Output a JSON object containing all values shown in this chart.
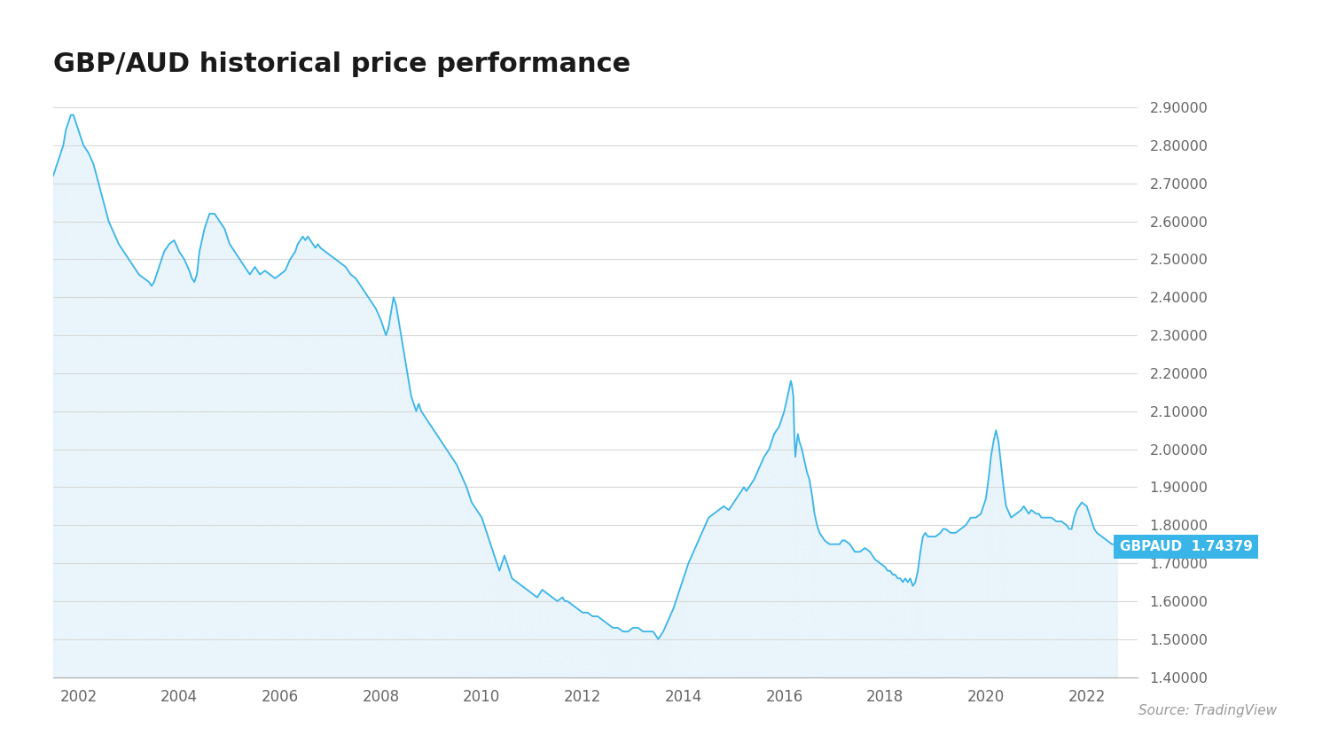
{
  "title": "GBP/AUD historical price performance",
  "source_text": "Source: TradingView",
  "label_text": "GBPAUD  1.74379",
  "line_color": "#3ab5e8",
  "fill_color": "#daeef8",
  "background_color": "#ffffff",
  "grid_color": "#d8d8d8",
  "label_bg_color": "#3ab5e8",
  "tick_color": "#666666",
  "title_color": "#1a1a1a",
  "ylim": [
    1.4,
    2.95
  ],
  "yticks": [
    1.4,
    1.5,
    1.6,
    1.7,
    1.8,
    1.9,
    2.0,
    2.1,
    2.2,
    2.3,
    2.4,
    2.5,
    2.6,
    2.7,
    2.8,
    2.9
  ],
  "xticks": [
    2002,
    2004,
    2006,
    2008,
    2010,
    2012,
    2014,
    2016,
    2018,
    2020,
    2022
  ],
  "xlim": [
    2001.5,
    2023.0
  ],
  "data": [
    [
      2001.5,
      2.72
    ],
    [
      2001.6,
      2.76
    ],
    [
      2001.7,
      2.8
    ],
    [
      2001.75,
      2.84
    ],
    [
      2001.8,
      2.86
    ],
    [
      2001.85,
      2.88
    ],
    [
      2001.9,
      2.88
    ],
    [
      2001.95,
      2.86
    ],
    [
      2002.0,
      2.84
    ],
    [
      2002.05,
      2.82
    ],
    [
      2002.1,
      2.8
    ],
    [
      2002.2,
      2.78
    ],
    [
      2002.3,
      2.75
    ],
    [
      2002.4,
      2.7
    ],
    [
      2002.5,
      2.65
    ],
    [
      2002.6,
      2.6
    ],
    [
      2002.7,
      2.57
    ],
    [
      2002.8,
      2.54
    ],
    [
      2002.9,
      2.52
    ],
    [
      2003.0,
      2.5
    ],
    [
      2003.1,
      2.48
    ],
    [
      2003.2,
      2.46
    ],
    [
      2003.3,
      2.45
    ],
    [
      2003.4,
      2.44
    ],
    [
      2003.45,
      2.43
    ],
    [
      2003.5,
      2.44
    ],
    [
      2003.6,
      2.48
    ],
    [
      2003.7,
      2.52
    ],
    [
      2003.8,
      2.54
    ],
    [
      2003.9,
      2.55
    ],
    [
      2004.0,
      2.52
    ],
    [
      2004.1,
      2.5
    ],
    [
      2004.2,
      2.47
    ],
    [
      2004.25,
      2.45
    ],
    [
      2004.3,
      2.44
    ],
    [
      2004.35,
      2.46
    ],
    [
      2004.4,
      2.52
    ],
    [
      2004.5,
      2.58
    ],
    [
      2004.6,
      2.62
    ],
    [
      2004.7,
      2.62
    ],
    [
      2004.8,
      2.6
    ],
    [
      2004.9,
      2.58
    ],
    [
      2005.0,
      2.54
    ],
    [
      2005.1,
      2.52
    ],
    [
      2005.2,
      2.5
    ],
    [
      2005.3,
      2.48
    ],
    [
      2005.35,
      2.47
    ],
    [
      2005.4,
      2.46
    ],
    [
      2005.45,
      2.47
    ],
    [
      2005.5,
      2.48
    ],
    [
      2005.55,
      2.47
    ],
    [
      2005.6,
      2.46
    ],
    [
      2005.7,
      2.47
    ],
    [
      2005.8,
      2.46
    ],
    [
      2005.9,
      2.45
    ],
    [
      2006.0,
      2.46
    ],
    [
      2006.1,
      2.47
    ],
    [
      2006.2,
      2.5
    ],
    [
      2006.3,
      2.52
    ],
    [
      2006.35,
      2.54
    ],
    [
      2006.4,
      2.55
    ],
    [
      2006.45,
      2.56
    ],
    [
      2006.5,
      2.55
    ],
    [
      2006.55,
      2.56
    ],
    [
      2006.6,
      2.55
    ],
    [
      2006.65,
      2.54
    ],
    [
      2006.7,
      2.53
    ],
    [
      2006.75,
      2.54
    ],
    [
      2006.8,
      2.53
    ],
    [
      2006.9,
      2.52
    ],
    [
      2007.0,
      2.51
    ],
    [
      2007.1,
      2.5
    ],
    [
      2007.2,
      2.49
    ],
    [
      2007.3,
      2.48
    ],
    [
      2007.35,
      2.47
    ],
    [
      2007.4,
      2.46
    ],
    [
      2007.5,
      2.45
    ],
    [
      2007.6,
      2.43
    ],
    [
      2007.7,
      2.41
    ],
    [
      2007.8,
      2.39
    ],
    [
      2007.9,
      2.37
    ],
    [
      2008.0,
      2.34
    ],
    [
      2008.05,
      2.32
    ],
    [
      2008.1,
      2.3
    ],
    [
      2008.15,
      2.32
    ],
    [
      2008.2,
      2.36
    ],
    [
      2008.25,
      2.4
    ],
    [
      2008.3,
      2.38
    ],
    [
      2008.35,
      2.34
    ],
    [
      2008.4,
      2.3
    ],
    [
      2008.45,
      2.26
    ],
    [
      2008.5,
      2.22
    ],
    [
      2008.55,
      2.18
    ],
    [
      2008.6,
      2.14
    ],
    [
      2008.65,
      2.12
    ],
    [
      2008.7,
      2.1
    ],
    [
      2008.75,
      2.12
    ],
    [
      2008.8,
      2.1
    ],
    [
      2008.9,
      2.08
    ],
    [
      2009.0,
      2.06
    ],
    [
      2009.1,
      2.04
    ],
    [
      2009.2,
      2.02
    ],
    [
      2009.3,
      2.0
    ],
    [
      2009.4,
      1.98
    ],
    [
      2009.5,
      1.96
    ],
    [
      2009.6,
      1.93
    ],
    [
      2009.7,
      1.9
    ],
    [
      2009.75,
      1.88
    ],
    [
      2009.8,
      1.86
    ],
    [
      2009.9,
      1.84
    ],
    [
      2010.0,
      1.82
    ],
    [
      2010.05,
      1.8
    ],
    [
      2010.1,
      1.78
    ],
    [
      2010.15,
      1.76
    ],
    [
      2010.2,
      1.74
    ],
    [
      2010.25,
      1.72
    ],
    [
      2010.3,
      1.7
    ],
    [
      2010.35,
      1.68
    ],
    [
      2010.4,
      1.7
    ],
    [
      2010.45,
      1.72
    ],
    [
      2010.5,
      1.7
    ],
    [
      2010.55,
      1.68
    ],
    [
      2010.6,
      1.66
    ],
    [
      2010.7,
      1.65
    ],
    [
      2010.8,
      1.64
    ],
    [
      2010.9,
      1.63
    ],
    [
      2011.0,
      1.62
    ],
    [
      2011.1,
      1.61
    ],
    [
      2011.15,
      1.62
    ],
    [
      2011.2,
      1.63
    ],
    [
      2011.3,
      1.62
    ],
    [
      2011.4,
      1.61
    ],
    [
      2011.5,
      1.6
    ],
    [
      2011.6,
      1.61
    ],
    [
      2011.65,
      1.6
    ],
    [
      2011.7,
      1.6
    ],
    [
      2011.8,
      1.59
    ],
    [
      2011.9,
      1.58
    ],
    [
      2012.0,
      1.57
    ],
    [
      2012.1,
      1.57
    ],
    [
      2012.2,
      1.56
    ],
    [
      2012.3,
      1.56
    ],
    [
      2012.4,
      1.55
    ],
    [
      2012.5,
      1.54
    ],
    [
      2012.6,
      1.53
    ],
    [
      2012.7,
      1.53
    ],
    [
      2012.8,
      1.52
    ],
    [
      2012.9,
      1.52
    ],
    [
      2013.0,
      1.53
    ],
    [
      2013.1,
      1.53
    ],
    [
      2013.2,
      1.52
    ],
    [
      2013.3,
      1.52
    ],
    [
      2013.4,
      1.52
    ],
    [
      2013.45,
      1.51
    ],
    [
      2013.5,
      1.5
    ],
    [
      2013.55,
      1.51
    ],
    [
      2013.6,
      1.52
    ],
    [
      2013.7,
      1.55
    ],
    [
      2013.8,
      1.58
    ],
    [
      2013.9,
      1.62
    ],
    [
      2014.0,
      1.66
    ],
    [
      2014.1,
      1.7
    ],
    [
      2014.2,
      1.73
    ],
    [
      2014.3,
      1.76
    ],
    [
      2014.4,
      1.79
    ],
    [
      2014.5,
      1.82
    ],
    [
      2014.6,
      1.83
    ],
    [
      2014.7,
      1.84
    ],
    [
      2014.8,
      1.85
    ],
    [
      2014.9,
      1.84
    ],
    [
      2015.0,
      1.86
    ],
    [
      2015.1,
      1.88
    ],
    [
      2015.2,
      1.9
    ],
    [
      2015.25,
      1.89
    ],
    [
      2015.3,
      1.9
    ],
    [
      2015.4,
      1.92
    ],
    [
      2015.5,
      1.95
    ],
    [
      2015.6,
      1.98
    ],
    [
      2015.7,
      2.0
    ],
    [
      2015.8,
      2.04
    ],
    [
      2015.9,
      2.06
    ],
    [
      2016.0,
      2.1
    ],
    [
      2016.05,
      2.13
    ],
    [
      2016.1,
      2.16
    ],
    [
      2016.13,
      2.18
    ],
    [
      2016.15,
      2.17
    ],
    [
      2016.18,
      2.14
    ],
    [
      2016.2,
      2.04
    ],
    [
      2016.22,
      1.98
    ],
    [
      2016.25,
      2.02
    ],
    [
      2016.27,
      2.04
    ],
    [
      2016.3,
      2.02
    ],
    [
      2016.35,
      2.0
    ],
    [
      2016.4,
      1.97
    ],
    [
      2016.45,
      1.94
    ],
    [
      2016.5,
      1.92
    ],
    [
      2016.55,
      1.88
    ],
    [
      2016.6,
      1.83
    ],
    [
      2016.65,
      1.8
    ],
    [
      2016.7,
      1.78
    ],
    [
      2016.8,
      1.76
    ],
    [
      2016.9,
      1.75
    ],
    [
      2017.0,
      1.75
    ],
    [
      2017.1,
      1.75
    ],
    [
      2017.15,
      1.76
    ],
    [
      2017.2,
      1.76
    ],
    [
      2017.3,
      1.75
    ],
    [
      2017.35,
      1.74
    ],
    [
      2017.4,
      1.73
    ],
    [
      2017.5,
      1.73
    ],
    [
      2017.6,
      1.74
    ],
    [
      2017.7,
      1.73
    ],
    [
      2017.75,
      1.72
    ],
    [
      2017.8,
      1.71
    ],
    [
      2017.9,
      1.7
    ],
    [
      2018.0,
      1.69
    ],
    [
      2018.05,
      1.68
    ],
    [
      2018.1,
      1.68
    ],
    [
      2018.15,
      1.67
    ],
    [
      2018.2,
      1.67
    ],
    [
      2018.25,
      1.66
    ],
    [
      2018.3,
      1.66
    ],
    [
      2018.35,
      1.65
    ],
    [
      2018.4,
      1.66
    ],
    [
      2018.45,
      1.65
    ],
    [
      2018.5,
      1.66
    ],
    [
      2018.55,
      1.64
    ],
    [
      2018.6,
      1.65
    ],
    [
      2018.65,
      1.68
    ],
    [
      2018.7,
      1.73
    ],
    [
      2018.75,
      1.77
    ],
    [
      2018.8,
      1.78
    ],
    [
      2018.85,
      1.77
    ],
    [
      2018.9,
      1.77
    ],
    [
      2019.0,
      1.77
    ],
    [
      2019.1,
      1.78
    ],
    [
      2019.15,
      1.79
    ],
    [
      2019.2,
      1.79
    ],
    [
      2019.3,
      1.78
    ],
    [
      2019.4,
      1.78
    ],
    [
      2019.5,
      1.79
    ],
    [
      2019.6,
      1.8
    ],
    [
      2019.65,
      1.81
    ],
    [
      2019.7,
      1.82
    ],
    [
      2019.8,
      1.82
    ],
    [
      2019.9,
      1.83
    ],
    [
      2020.0,
      1.87
    ],
    [
      2020.05,
      1.92
    ],
    [
      2020.1,
      1.98
    ],
    [
      2020.15,
      2.02
    ],
    [
      2020.2,
      2.05
    ],
    [
      2020.25,
      2.02
    ],
    [
      2020.3,
      1.96
    ],
    [
      2020.35,
      1.9
    ],
    [
      2020.4,
      1.85
    ],
    [
      2020.5,
      1.82
    ],
    [
      2020.6,
      1.83
    ],
    [
      2020.7,
      1.84
    ],
    [
      2020.75,
      1.85
    ],
    [
      2020.8,
      1.84
    ],
    [
      2020.85,
      1.83
    ],
    [
      2020.9,
      1.84
    ],
    [
      2021.0,
      1.83
    ],
    [
      2021.05,
      1.83
    ],
    [
      2021.1,
      1.82
    ],
    [
      2021.2,
      1.82
    ],
    [
      2021.3,
      1.82
    ],
    [
      2021.4,
      1.81
    ],
    [
      2021.5,
      1.81
    ],
    [
      2021.6,
      1.8
    ],
    [
      2021.65,
      1.79
    ],
    [
      2021.7,
      1.79
    ],
    [
      2021.75,
      1.82
    ],
    [
      2021.8,
      1.84
    ],
    [
      2021.85,
      1.85
    ],
    [
      2021.9,
      1.86
    ],
    [
      2022.0,
      1.85
    ],
    [
      2022.05,
      1.83
    ],
    [
      2022.1,
      1.81
    ],
    [
      2022.15,
      1.79
    ],
    [
      2022.2,
      1.78
    ],
    [
      2022.3,
      1.77
    ],
    [
      2022.4,
      1.76
    ],
    [
      2022.5,
      1.75
    ],
    [
      2022.55,
      1.75
    ],
    [
      2022.6,
      1.74379
    ]
  ]
}
